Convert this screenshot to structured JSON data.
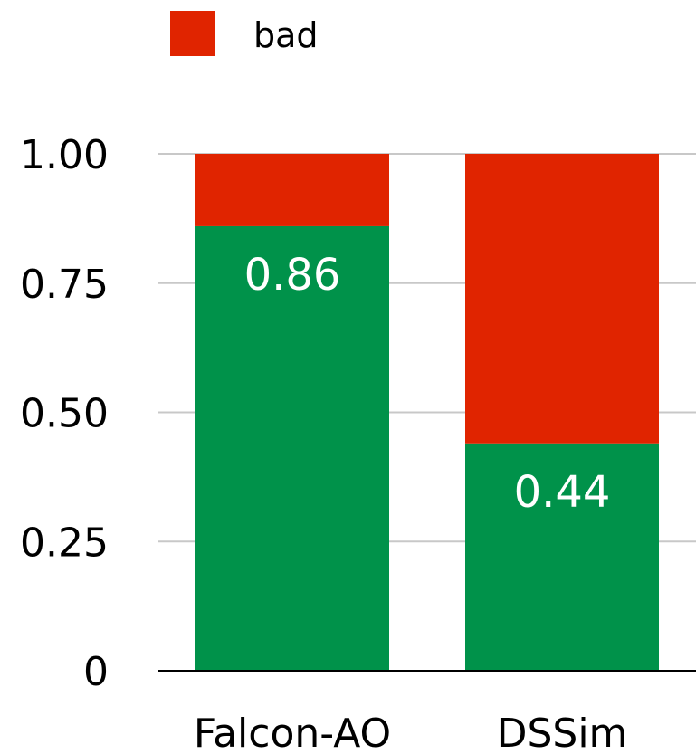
{
  "chart_data": {
    "type": "bar",
    "stacked": true,
    "categories": [
      "Falcon-AO",
      "DSSim"
    ],
    "series": [
      {
        "name": "",
        "values": [
          0.86,
          0.44
        ],
        "color": "#00924a",
        "data_labels": [
          "0.86",
          "0.44"
        ]
      },
      {
        "name": "bad",
        "values": [
          0.14,
          0.56
        ],
        "color": "#e02400"
      }
    ],
    "ylim": [
      0,
      1
    ],
    "yticks": [
      0,
      0.25,
      0.5,
      0.75,
      1.0
    ],
    "ytick_labels": [
      "0",
      "0.25",
      "0.50",
      "0.75",
      "1.00"
    ],
    "grid": true,
    "legend_position": "top",
    "title": "",
    "xlabel": "",
    "ylabel": ""
  }
}
